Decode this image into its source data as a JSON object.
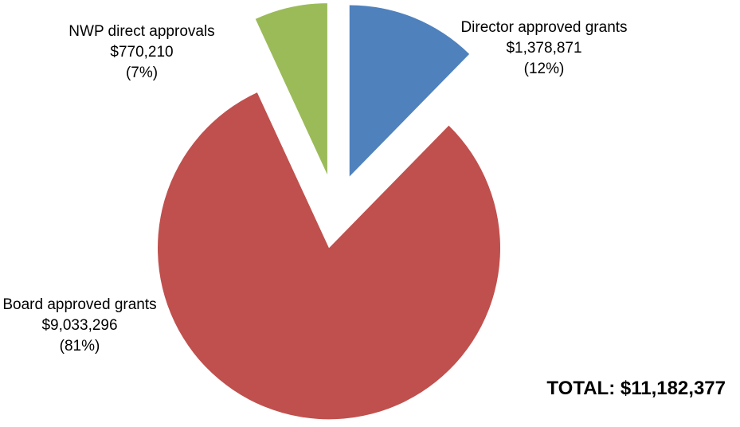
{
  "chart_data": {
    "type": "pie",
    "categories": [
      "Director approved grants",
      "Board approved grants",
      "NWP direct approvals"
    ],
    "values": [
      1378871,
      9033296,
      770210
    ],
    "value_labels": [
      "$1,378,871",
      "$9,033,296",
      "$770,210"
    ],
    "percents": [
      12,
      81,
      7
    ],
    "percent_labels": [
      "(12%)",
      "(81%)",
      "(7%)"
    ],
    "colors": [
      "#4f81bd",
      "#c0504d",
      "#9bbb59"
    ],
    "total_label": "TOTAL: $11,182,377"
  }
}
